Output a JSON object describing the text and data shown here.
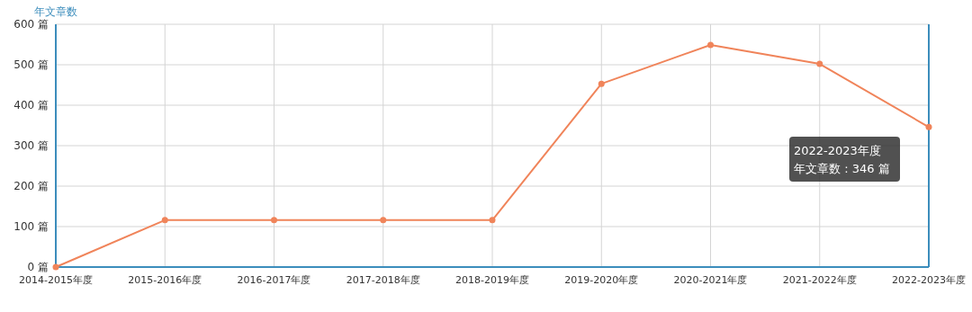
{
  "chart_data": {
    "type": "line",
    "ylabel": "年文章数",
    "categories": [
      "2014-2015年度",
      "2015-2016年度",
      "2016-2017年度",
      "2017-2018年度",
      "2018-2019年度",
      "2019-2020年度",
      "2020-2021年度",
      "2021-2022年度",
      "2022-2023年度"
    ],
    "series": [
      {
        "color": "#f0845a",
        "values": [
          0,
          116,
          116,
          116,
          116,
          453,
          549,
          502,
          346
        ]
      }
    ],
    "ylim": [
      0,
      600
    ],
    "yticks": [
      {
        "value": 0,
        "label": "0 篇"
      },
      {
        "value": 100,
        "label": "100 篇"
      },
      {
        "value": 200,
        "label": "200 篇"
      },
      {
        "value": 300,
        "label": "300 篇"
      },
      {
        "value": 400,
        "label": "400 篇"
      },
      {
        "value": 500,
        "label": "500 篇"
      },
      {
        "value": 600,
        "label": "600 篇"
      }
    ],
    "grid": true,
    "marker": "circle",
    "line_style": "solid",
    "annotations": [
      "2022-2023年度",
      "年文章数 : 346 篇"
    ]
  }
}
